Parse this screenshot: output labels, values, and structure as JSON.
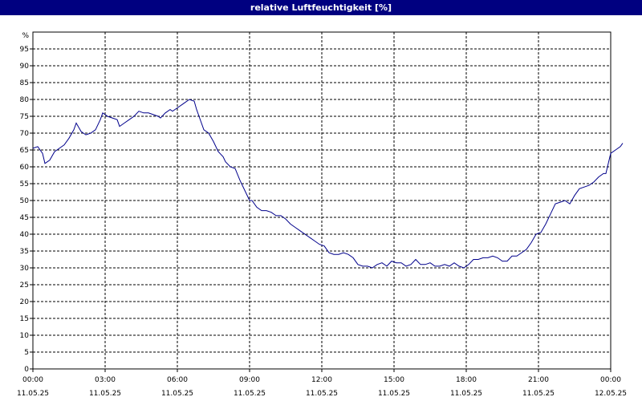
{
  "title": "relative Luftfeuchtigkeit [%]",
  "chart_data": {
    "type": "line",
    "title": "relative Luftfeuchtigkeit [%]",
    "ylabel": "%",
    "xlabel": "",
    "ylim": [
      0,
      100
    ],
    "yticks": [
      0,
      5,
      10,
      15,
      20,
      25,
      30,
      35,
      40,
      45,
      50,
      55,
      60,
      65,
      70,
      75,
      80,
      85,
      90,
      95
    ],
    "grid": true,
    "line_color": "#00008b",
    "xticks": [
      {
        "hours": 0,
        "time": "00:00",
        "date": "11.05.25"
      },
      {
        "hours": 3,
        "time": "03:00",
        "date": "11.05.25"
      },
      {
        "hours": 6,
        "time": "06:00",
        "date": "11.05.25"
      },
      {
        "hours": 9,
        "time": "09:00",
        "date": "11.05.25"
      },
      {
        "hours": 12,
        "time": "12:00",
        "date": "11.05.25"
      },
      {
        "hours": 15,
        "time": "15:00",
        "date": "11.05.25"
      },
      {
        "hours": 18,
        "time": "18:00",
        "date": "11.05.25"
      },
      {
        "hours": 21,
        "time": "21:00",
        "date": "11.05.25"
      },
      {
        "hours": 24,
        "time": "00:00",
        "date": "12.05.25"
      }
    ],
    "series": [
      {
        "points": [
          [
            0.0,
            65.5
          ],
          [
            0.2,
            66
          ],
          [
            0.4,
            64
          ],
          [
            0.5,
            61
          ],
          [
            0.7,
            62
          ],
          [
            0.9,
            64.5
          ],
          [
            1.1,
            65.5
          ],
          [
            1.3,
            66.5
          ],
          [
            1.5,
            68.5
          ],
          [
            1.7,
            71
          ],
          [
            1.8,
            73
          ],
          [
            2.0,
            70.5
          ],
          [
            2.2,
            69.5
          ],
          [
            2.4,
            70
          ],
          [
            2.6,
            71
          ],
          [
            2.8,
            74
          ],
          [
            2.9,
            76
          ],
          [
            3.1,
            75
          ],
          [
            3.3,
            74.5
          ],
          [
            3.5,
            74
          ],
          [
            3.6,
            72
          ],
          [
            3.8,
            73
          ],
          [
            4.0,
            74
          ],
          [
            4.2,
            75
          ],
          [
            4.4,
            76.5
          ],
          [
            4.6,
            76
          ],
          [
            4.8,
            76
          ],
          [
            5.0,
            75.5
          ],
          [
            5.2,
            75
          ],
          [
            5.3,
            74.5
          ],
          [
            5.5,
            76
          ],
          [
            5.7,
            77
          ],
          [
            5.8,
            76.5
          ],
          [
            6.0,
            77.5
          ],
          [
            6.2,
            78.5
          ],
          [
            6.3,
            79
          ],
          [
            6.5,
            80
          ],
          [
            6.7,
            79.5
          ],
          [
            6.8,
            77
          ],
          [
            6.9,
            75
          ],
          [
            7.1,
            71
          ],
          [
            7.3,
            70
          ],
          [
            7.5,
            67.5
          ],
          [
            7.7,
            64.5
          ],
          [
            7.9,
            63
          ],
          [
            8.0,
            61.5
          ],
          [
            8.2,
            60
          ],
          [
            8.4,
            59.5
          ],
          [
            8.6,
            56
          ],
          [
            8.8,
            53
          ],
          [
            9.0,
            50
          ],
          [
            9.1,
            50
          ],
          [
            9.3,
            48
          ],
          [
            9.5,
            47
          ],
          [
            9.7,
            47
          ],
          [
            9.9,
            46.5
          ],
          [
            10.1,
            45.5
          ],
          [
            10.3,
            45.5
          ],
          [
            10.5,
            44.5
          ],
          [
            10.7,
            43
          ],
          [
            10.9,
            42
          ],
          [
            11.1,
            41
          ],
          [
            11.3,
            40
          ],
          [
            11.5,
            39
          ],
          [
            11.7,
            38
          ],
          [
            11.9,
            37
          ],
          [
            12.1,
            36.5
          ],
          [
            12.3,
            34.5
          ],
          [
            12.5,
            34
          ],
          [
            12.7,
            34
          ],
          [
            12.9,
            34.5
          ],
          [
            13.1,
            34
          ],
          [
            13.3,
            33
          ],
          [
            13.5,
            31
          ],
          [
            13.7,
            30.5
          ],
          [
            13.9,
            30.5
          ],
          [
            14.1,
            30
          ],
          [
            14.3,
            31
          ],
          [
            14.5,
            31.5
          ],
          [
            14.7,
            30.5
          ],
          [
            14.9,
            32
          ],
          [
            15.1,
            31.5
          ],
          [
            15.3,
            31.5
          ],
          [
            15.5,
            30.5
          ],
          [
            15.7,
            31
          ],
          [
            15.9,
            32.5
          ],
          [
            16.1,
            31
          ],
          [
            16.3,
            31
          ],
          [
            16.5,
            31.5
          ],
          [
            16.7,
            30.5
          ],
          [
            16.9,
            30.5
          ],
          [
            17.1,
            31
          ],
          [
            17.3,
            30.5
          ],
          [
            17.5,
            31.5
          ],
          [
            17.7,
            30.5
          ],
          [
            17.9,
            30
          ],
          [
            18.1,
            31
          ],
          [
            18.3,
            32.5
          ],
          [
            18.5,
            32.5
          ],
          [
            18.7,
            33
          ],
          [
            18.9,
            33
          ],
          [
            19.1,
            33.5
          ],
          [
            19.3,
            33
          ],
          [
            19.5,
            32
          ],
          [
            19.7,
            32
          ],
          [
            19.9,
            33.5
          ],
          [
            20.1,
            33.5
          ],
          [
            20.3,
            34.5
          ],
          [
            20.5,
            35.5
          ],
          [
            20.7,
            37.5
          ],
          [
            20.9,
            40
          ],
          [
            21.1,
            40.5
          ],
          [
            21.3,
            43
          ],
          [
            21.5,
            46
          ],
          [
            21.7,
            49
          ],
          [
            21.9,
            49.5
          ],
          [
            22.1,
            50
          ],
          [
            22.3,
            49
          ],
          [
            22.5,
            51.5
          ],
          [
            22.7,
            53.5
          ],
          [
            22.9,
            54
          ],
          [
            23.1,
            54.5
          ],
          [
            23.3,
            55.5
          ],
          [
            23.5,
            57
          ],
          [
            23.7,
            58
          ],
          [
            23.8,
            58
          ],
          [
            24.0,
            64
          ],
          [
            24.2,
            65
          ],
          [
            24.4,
            66
          ],
          [
            24.5,
            67
          ]
        ]
      }
    ]
  }
}
